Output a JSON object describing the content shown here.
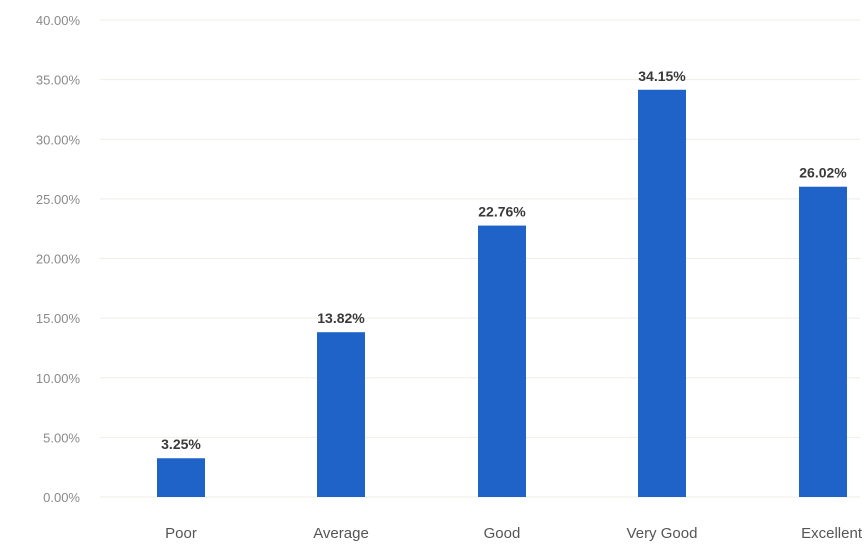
{
  "chart_data": {
    "type": "bar",
    "title": "",
    "xlabel": "",
    "ylabel": "",
    "categories": [
      "Poor",
      "Average",
      "Good",
      "Very Good",
      "Excellent"
    ],
    "values": [
      3.25,
      13.82,
      22.76,
      34.15,
      26.02
    ],
    "value_labels": [
      "3.25%",
      "13.82%",
      "22.76%",
      "34.15%",
      "26.02%"
    ],
    "ylim": [
      0,
      40
    ],
    "yticks": [
      0,
      5,
      10,
      15,
      20,
      25,
      30,
      35,
      40
    ],
    "ytick_labels": [
      "0.00%",
      "5.00%",
      "10.00%",
      "15.00%",
      "20.00%",
      "25.00%",
      "30.00%",
      "35.00%",
      "40.00%"
    ],
    "grid": true,
    "legend": "none",
    "bar_color": "#1f63c9"
  }
}
